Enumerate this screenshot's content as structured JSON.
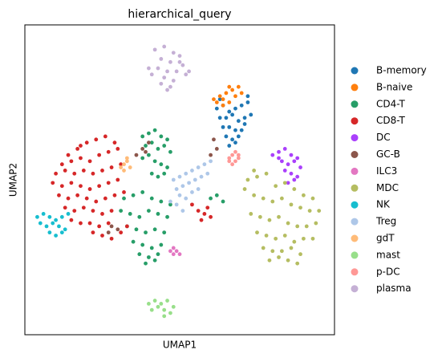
{
  "chart_data": {
    "type": "scatter",
    "title": "hierarchical_query",
    "x_label": "UMAP1",
    "y_label": "UMAP2",
    "xlim": [
      0,
      100
    ],
    "ylim": [
      0,
      100
    ],
    "legend": "right",
    "series": [
      {
        "name": "B-memory",
        "color": "#1f77b4",
        "x": [
          62,
          64,
          66,
          68,
          70,
          72,
          63,
          65,
          67,
          69,
          71,
          73,
          64,
          66,
          68,
          70,
          65,
          67,
          69,
          66,
          68,
          71,
          63,
          72
        ],
        "y": [
          73,
          74,
          72,
          73,
          74,
          75,
          70,
          70,
          71,
          69,
          70,
          71,
          67,
          67,
          66,
          66,
          64,
          63,
          64,
          61,
          62,
          68,
          76,
          77
        ]
      },
      {
        "name": "B-naive",
        "color": "#ff7f0e",
        "x": [
          61,
          63,
          65,
          67,
          69,
          62,
          64,
          66,
          68,
          70,
          64,
          66
        ],
        "y": [
          76,
          77,
          78,
          79,
          80,
          75,
          76,
          75,
          77,
          78,
          74,
          80
        ]
      },
      {
        "name": "CD4-T",
        "color": "#279e68",
        "x": [
          38,
          40,
          42,
          44,
          46,
          39,
          41,
          43,
          45,
          47,
          38,
          40,
          42,
          44,
          46,
          41,
          43,
          45,
          32,
          35,
          38,
          41,
          44,
          47,
          31,
          34,
          37,
          40,
          43,
          46,
          33,
          36,
          39,
          42,
          45,
          35,
          38,
          41,
          44,
          37,
          40,
          43,
          39,
          42,
          60,
          62,
          64
        ],
        "y": [
          64,
          65,
          66,
          64,
          63,
          61,
          62,
          60,
          61,
          59,
          57,
          58,
          56,
          55,
          54,
          52,
          51,
          52,
          44,
          45,
          46,
          44,
          43,
          42,
          40,
          39,
          38,
          40,
          39,
          38,
          35,
          34,
          33,
          34,
          33,
          30,
          29,
          28,
          29,
          26,
          25,
          26,
          23,
          24,
          44,
          45,
          43
        ]
      },
      {
        "name": "CD8-T",
        "color": "#d62728",
        "x": [
          12,
          15,
          18,
          21,
          24,
          27,
          30,
          10,
          13,
          16,
          19,
          22,
          25,
          28,
          31,
          9,
          12,
          15,
          18,
          21,
          24,
          27,
          30,
          11,
          14,
          17,
          20,
          23,
          26,
          29,
          32,
          13,
          16,
          19,
          22,
          25,
          28,
          15,
          18,
          21,
          24,
          27,
          20,
          23,
          26,
          29,
          17,
          22,
          25,
          28,
          31,
          33,
          14,
          18,
          54,
          56,
          58,
          60,
          57,
          59
        ],
        "y": [
          55,
          56,
          57,
          56,
          58,
          59,
          60,
          52,
          53,
          52,
          53,
          52,
          53,
          54,
          55,
          49,
          48,
          49,
          48,
          47,
          48,
          49,
          50,
          45,
          44,
          45,
          44,
          43,
          44,
          45,
          46,
          41,
          40,
          41,
          40,
          39,
          40,
          37,
          36,
          36,
          35,
          36,
          62,
          63,
          64,
          62,
          60,
          33,
          32,
          31,
          33,
          35,
          58,
          61,
          42,
          40,
          39,
          38,
          37,
          41
        ]
      },
      {
        "name": "DC",
        "color": "#aa40fc",
        "x": [
          80,
          82,
          84,
          86,
          88,
          83,
          85,
          87,
          89,
          84,
          86,
          88,
          82,
          87,
          85
        ],
        "y": [
          58,
          59,
          60,
          58,
          57,
          56,
          55,
          56,
          54,
          53,
          52,
          51,
          57,
          50,
          49
        ]
      },
      {
        "name": "GC-B",
        "color": "#8c564b",
        "x": [
          38,
          40,
          36,
          28,
          27,
          30,
          61,
          62,
          60,
          39
        ],
        "y": [
          60,
          62,
          58,
          35,
          33,
          34,
          63,
          60,
          58,
          59
        ]
      },
      {
        "name": "ILC3",
        "color": "#e377c2",
        "x": [
          47,
          48,
          49,
          50,
          48
        ],
        "y": [
          27,
          28,
          27,
          26,
          26
        ]
      },
      {
        "name": "MDC",
        "color": "#b5bd61",
        "x": [
          72,
          75,
          78,
          81,
          84,
          87,
          90,
          93,
          74,
          77,
          80,
          83,
          86,
          89,
          92,
          95,
          73,
          76,
          79,
          82,
          85,
          88,
          91,
          94,
          75,
          78,
          81,
          84,
          87,
          90,
          93,
          77,
          80,
          83,
          86,
          89,
          79,
          82,
          85,
          88,
          71,
          74
        ],
        "y": [
          50,
          51,
          52,
          48,
          49,
          47,
          45,
          44,
          45,
          44,
          43,
          44,
          42,
          41,
          40,
          40,
          39,
          38,
          37,
          38,
          36,
          35,
          35,
          36,
          33,
          32,
          31,
          32,
          30,
          31,
          31,
          28,
          27,
          27,
          28,
          26,
          24,
          25,
          24,
          23,
          47,
          53
        ]
      },
      {
        "name": "NK",
        "color": "#17becf",
        "x": [
          4,
          6,
          8,
          10,
          12,
          14,
          5,
          7,
          9,
          11,
          13,
          8,
          10,
          12
        ],
        "y": [
          38,
          39,
          38,
          37,
          38,
          39,
          36,
          35,
          36,
          35,
          34,
          33,
          32,
          33
        ]
      },
      {
        "name": "Treg",
        "color": "#aec7e8",
        "x": [
          48,
          50,
          52,
          54,
          56,
          58,
          60,
          49,
          51,
          53,
          55,
          57,
          59,
          50,
          52,
          54,
          56,
          47,
          49,
          51
        ],
        "y": [
          50,
          51,
          52,
          53,
          54,
          55,
          56,
          47,
          48,
          49,
          50,
          51,
          52,
          45,
          44,
          46,
          47,
          43,
          42,
          40
        ]
      },
      {
        "name": "gdT",
        "color": "#ffbb78",
        "x": [
          31,
          32,
          33,
          34,
          32,
          33
        ],
        "y": [
          54,
          55,
          56,
          54,
          53,
          57
        ]
      },
      {
        "name": "mast",
        "color": "#98df8a",
        "x": [
          40,
          42,
          44,
          46,
          48,
          41,
          43,
          45,
          47,
          45
        ],
        "y": [
          10,
          11,
          10,
          11,
          9,
          8,
          9,
          8,
          7,
          6
        ]
      },
      {
        "name": "p-DC",
        "color": "#ff9896",
        "x": [
          66,
          67,
          68,
          69,
          67,
          68,
          66,
          69
        ],
        "y": [
          57,
          58,
          56,
          57,
          55,
          59,
          56,
          58
        ]
      },
      {
        "name": "plasma",
        "color": "#c5b0d5",
        "x": [
          42,
          45,
          48,
          50,
          44,
          47,
          51,
          40,
          43,
          46,
          49,
          52,
          45,
          48,
          41,
          50,
          47,
          44,
          53,
          46
        ],
        "y": [
          92,
          93,
          91,
          90,
          89,
          88,
          87,
          86,
          86,
          85,
          85,
          84,
          83,
          82,
          84,
          88,
          80,
          81,
          85,
          79
        ]
      }
    ]
  }
}
